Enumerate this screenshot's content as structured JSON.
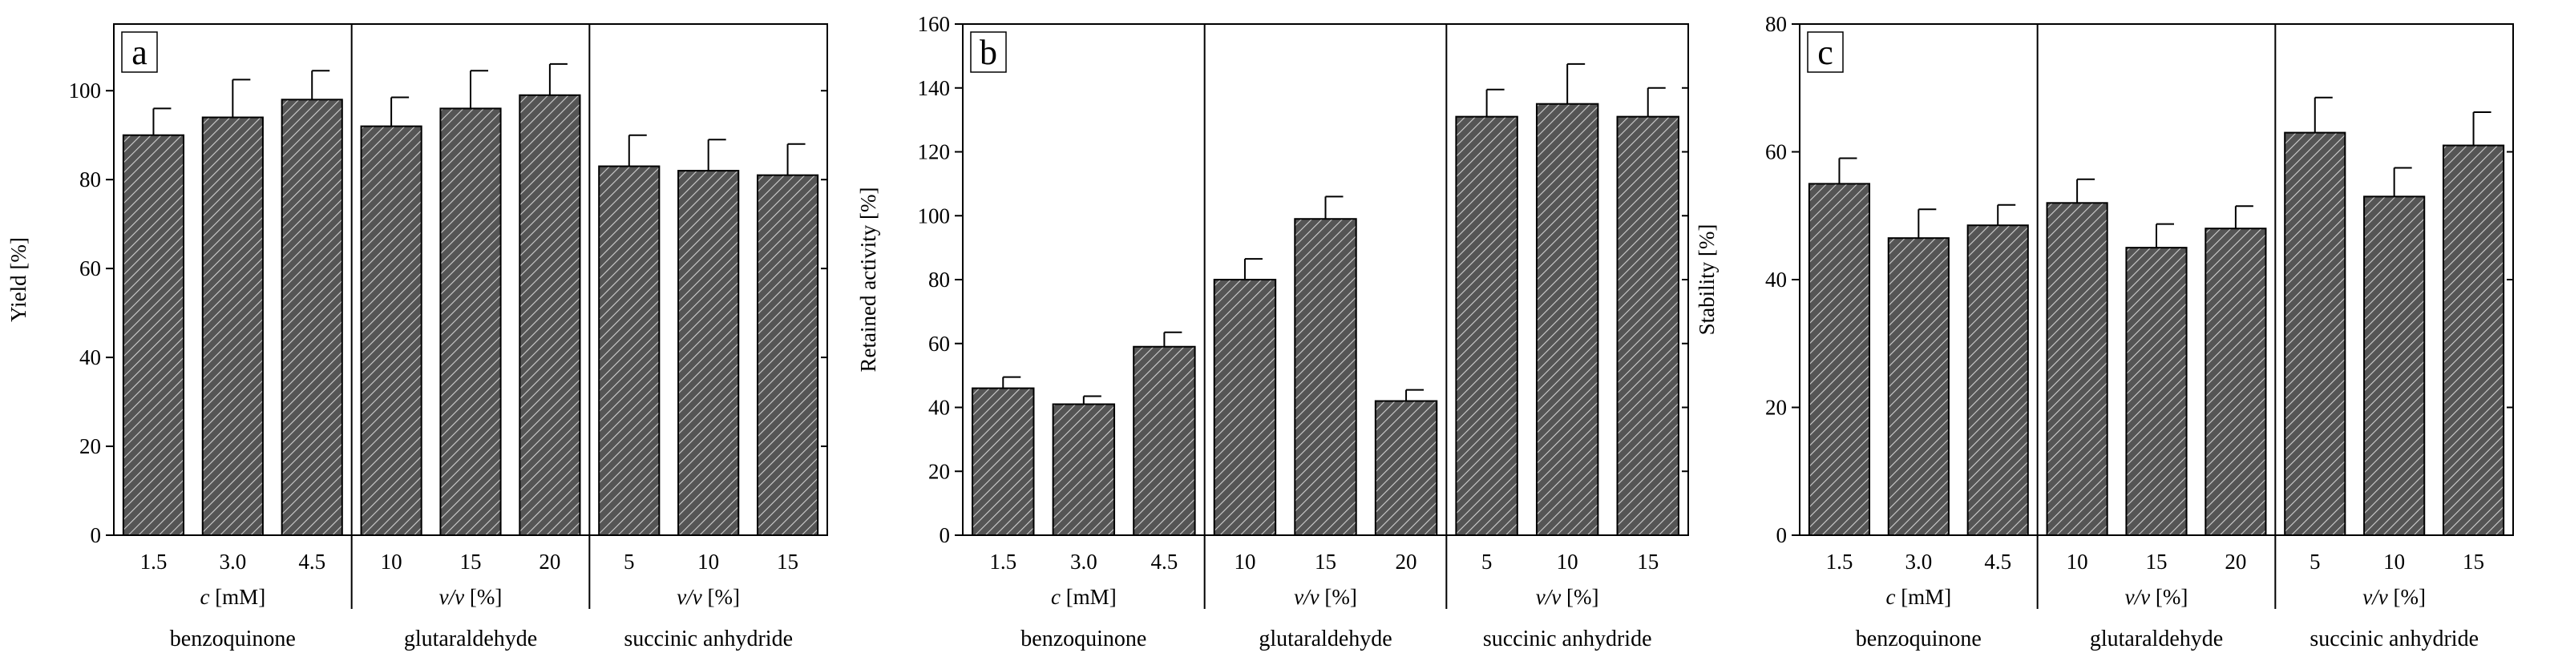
{
  "colors": {
    "bar_fill": "#555555",
    "bar_hatch": "#cfcfcf",
    "axis": "#000000",
    "background": "#ffffff"
  },
  "chart_data": [
    {
      "type": "bar",
      "panel": "a",
      "ylabel": "Yield  [%]",
      "ylim": [
        0,
        115
      ],
      "yticks": [
        0,
        20,
        40,
        60,
        80,
        100
      ],
      "groups": [
        {
          "name": "benzoquinone",
          "unit_prefix": "c",
          "unit_suffix": " [mM]",
          "categories": [
            "1.5",
            "3.0",
            "4.5"
          ]
        },
        {
          "name": "glutaraldehyde",
          "unit_prefix": "v/v",
          "unit_suffix": " [%]",
          "categories": [
            "10",
            "15",
            "20"
          ]
        },
        {
          "name": "succinic anhydride",
          "unit_prefix": "v/v",
          "unit_suffix": " [%]",
          "categories": [
            "5",
            "10",
            "15"
          ]
        }
      ],
      "values": [
        90,
        94,
        98,
        92,
        96,
        99,
        83,
        82,
        81
      ],
      "errors": [
        6,
        8.5,
        6.5,
        6.5,
        8.5,
        7,
        7,
        7,
        7
      ]
    },
    {
      "type": "bar",
      "panel": "b",
      "ylabel": "Retained activity [%]",
      "ylim": [
        0,
        160
      ],
      "yticks": [
        0,
        20,
        40,
        60,
        80,
        100,
        120,
        140,
        160
      ],
      "groups": [
        {
          "name": "benzoquinone",
          "unit_prefix": "c",
          "unit_suffix": " [mM]",
          "categories": [
            "1.5",
            "3.0",
            "4.5"
          ]
        },
        {
          "name": "glutaraldehyde",
          "unit_prefix": "v/v",
          "unit_suffix": " [%]",
          "categories": [
            "10",
            "15",
            "20"
          ]
        },
        {
          "name": "succinic anhydride",
          "unit_prefix": "v/v",
          "unit_suffix": " [%]",
          "categories": [
            "5",
            "10",
            "15"
          ]
        }
      ],
      "values": [
        46,
        41,
        59,
        80,
        99,
        42,
        131,
        135,
        131
      ],
      "errors": [
        3.5,
        2.5,
        4.5,
        6.5,
        7,
        3.5,
        8.5,
        12.5,
        9
      ]
    },
    {
      "type": "bar",
      "panel": "c",
      "ylabel": "Stability [%]",
      "ylim": [
        0,
        80
      ],
      "yticks": [
        0,
        20,
        40,
        60,
        80
      ],
      "groups": [
        {
          "name": "benzoquinone",
          "unit_prefix": "c",
          "unit_suffix": " [mM]",
          "categories": [
            "1.5",
            "3.0",
            "4.5"
          ]
        },
        {
          "name": "glutaraldehyde",
          "unit_prefix": "v/v",
          "unit_suffix": " [%]",
          "categories": [
            "10",
            "15",
            "20"
          ]
        },
        {
          "name": "succinic anhydride",
          "unit_prefix": "v/v",
          "unit_suffix": " [%]",
          "categories": [
            "5",
            "10",
            "15"
          ]
        }
      ],
      "values": [
        55,
        46.5,
        48.5,
        52,
        45,
        48,
        63,
        53,
        61
      ],
      "errors": [
        4,
        4.5,
        3.2,
        3.7,
        3.7,
        3.5,
        5.5,
        4.5,
        5.2
      ]
    }
  ]
}
